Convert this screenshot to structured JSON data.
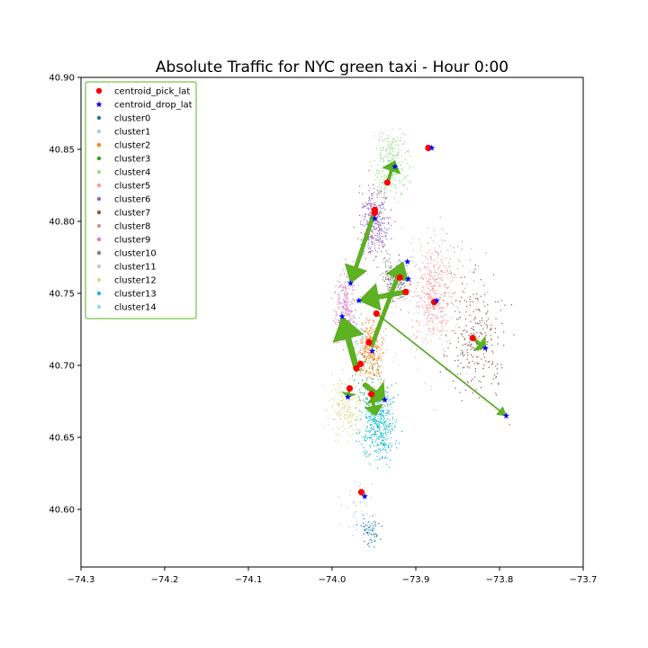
{
  "chart_data": {
    "type": "scatter",
    "title": "Absolute Traffic for NYC green taxi - Hour 0:00",
    "xlabel": "",
    "ylabel": "",
    "xlim": [
      -74.3,
      -73.7
    ],
    "ylim": [
      40.56,
      40.9
    ],
    "x_ticks": [
      -74.3,
      -74.2,
      -74.1,
      -74.0,
      -73.9,
      -73.8,
      -73.7
    ],
    "x_tick_labels": [
      "−74.3",
      "−74.2",
      "−74.1",
      "−74.0",
      "−73.9",
      "−73.8",
      "−73.7"
    ],
    "y_ticks": [
      40.6,
      40.65,
      40.7,
      40.75,
      40.8,
      40.85,
      40.9
    ],
    "y_tick_labels": [
      "40.60",
      "40.65",
      "40.70",
      "40.75",
      "40.80",
      "40.85",
      "40.90"
    ],
    "grid": false,
    "legend_position": "top-left",
    "legend": [
      {
        "label": "centroid_pick_lat",
        "marker": "circle",
        "color": "#ff0000"
      },
      {
        "label": "centroid_drop_lat",
        "marker": "star",
        "color": "#0000ff"
      },
      {
        "label": "cluster0",
        "marker": "dot",
        "color": "#1f77b4"
      },
      {
        "label": "cluster1",
        "marker": "dot",
        "color": "#aec7e8"
      },
      {
        "label": "cluster2",
        "marker": "dot",
        "color": "#ff7f0e"
      },
      {
        "label": "cluster3",
        "marker": "dot",
        "color": "#2ca02c"
      },
      {
        "label": "cluster4",
        "marker": "dot",
        "color": "#98df8a"
      },
      {
        "label": "cluster5",
        "marker": "dot",
        "color": "#ff9896"
      },
      {
        "label": "cluster6",
        "marker": "dot",
        "color": "#9467bd"
      },
      {
        "label": "cluster7",
        "marker": "dot",
        "color": "#8c564b"
      },
      {
        "label": "cluster8",
        "marker": "dot",
        "color": "#c49c94"
      },
      {
        "label": "cluster9",
        "marker": "dot",
        "color": "#e377c2"
      },
      {
        "label": "cluster10",
        "marker": "dot",
        "color": "#7f7f7f"
      },
      {
        "label": "cluster11",
        "marker": "dot",
        "color": "#c7c7c7"
      },
      {
        "label": "cluster12",
        "marker": "dot",
        "color": "#dbdb8d"
      },
      {
        "label": "cluster13",
        "marker": "dot",
        "color": "#17becf"
      },
      {
        "label": "cluster14",
        "marker": "dot",
        "color": "#9edae5"
      }
    ],
    "clusters": [
      {
        "name": "cluster0",
        "color": "#1f77b4",
        "center": [
          -73.955,
          40.585
        ],
        "spread": [
          0.012,
          0.01
        ],
        "n": 60
      },
      {
        "name": "cluster1",
        "color": "#aec7e8",
        "center": [
          -73.97,
          40.6
        ],
        "spread": [
          0.02,
          0.02
        ],
        "n": 40
      },
      {
        "name": "cluster2",
        "color": "#ff7f0e",
        "center": [
          -73.955,
          40.71
        ],
        "spread": [
          0.015,
          0.02
        ],
        "n": 260
      },
      {
        "name": "cluster3",
        "color": "#2ca02c",
        "center": [
          -73.96,
          40.69
        ],
        "spread": [
          0.02,
          0.02
        ],
        "n": 60
      },
      {
        "name": "cluster4",
        "color": "#98df8a",
        "center": [
          -73.93,
          40.84
        ],
        "spread": [
          0.02,
          0.025
        ],
        "n": 260
      },
      {
        "name": "cluster5",
        "color": "#ff9896",
        "center": [
          -73.88,
          40.75
        ],
        "spread": [
          0.022,
          0.03
        ],
        "n": 320
      },
      {
        "name": "cluster6",
        "color": "#9467bd",
        "center": [
          -73.95,
          40.8
        ],
        "spread": [
          0.018,
          0.025
        ],
        "n": 340
      },
      {
        "name": "cluster7",
        "color": "#8c564b",
        "center": [
          -73.83,
          40.72
        ],
        "spread": [
          0.035,
          0.04
        ],
        "n": 260
      },
      {
        "name": "cluster8",
        "color": "#c49c94",
        "center": [
          -73.86,
          40.77
        ],
        "spread": [
          0.03,
          0.03
        ],
        "n": 60
      },
      {
        "name": "cluster9",
        "color": "#e377c2",
        "center": [
          -73.985,
          40.74
        ],
        "spread": [
          0.012,
          0.025
        ],
        "n": 220
      },
      {
        "name": "cluster10",
        "color": "#7f7f7f",
        "center": [
          -73.925,
          40.76
        ],
        "spread": [
          0.015,
          0.015
        ],
        "n": 200
      },
      {
        "name": "cluster11",
        "color": "#c7c7c7",
        "center": [
          -73.9,
          40.74
        ],
        "spread": [
          0.06,
          0.06
        ],
        "n": 120
      },
      {
        "name": "cluster12",
        "color": "#dbdb8d",
        "center": [
          -73.985,
          40.67
        ],
        "spread": [
          0.02,
          0.02
        ],
        "n": 200
      },
      {
        "name": "cluster13",
        "color": "#17becf",
        "center": [
          -73.945,
          40.66
        ],
        "spread": [
          0.02,
          0.025
        ],
        "n": 420
      },
      {
        "name": "cluster14",
        "color": "#9edae5",
        "center": [
          -73.97,
          40.72
        ],
        "spread": [
          0.015,
          0.015
        ],
        "n": 80
      }
    ],
    "pickup_centroids": [
      [
        -73.885,
        40.851
      ],
      [
        -73.934,
        40.827
      ],
      [
        -73.949,
        40.808
      ],
      [
        -73.949,
        40.806
      ],
      [
        -73.919,
        40.761
      ],
      [
        -73.912,
        40.751
      ],
      [
        -73.878,
        40.744
      ],
      [
        -73.947,
        40.736
      ],
      [
        -73.832,
        40.719
      ],
      [
        -73.956,
        40.716
      ],
      [
        -73.966,
        40.701
      ],
      [
        -73.971,
        40.698
      ],
      [
        -73.979,
        40.684
      ],
      [
        -73.953,
        40.68
      ],
      [
        -73.965,
        40.612
      ]
    ],
    "dropoff_centroids": [
      [
        -73.881,
        40.851
      ],
      [
        -73.925,
        40.838
      ],
      [
        -73.949,
        40.802
      ],
      [
        -73.978,
        40.757
      ],
      [
        -73.91,
        40.772
      ],
      [
        -73.909,
        40.76
      ],
      [
        -73.875,
        40.745
      ],
      [
        -73.968,
        40.745
      ],
      [
        -73.817,
        40.712
      ],
      [
        -73.952,
        40.71
      ],
      [
        -73.988,
        40.734
      ],
      [
        -73.981,
        40.678
      ],
      [
        -73.937,
        40.676
      ],
      [
        -73.792,
        40.665
      ],
      [
        -73.961,
        40.609
      ]
    ],
    "flows": [
      {
        "from": [
          -73.949,
          40.807
        ],
        "to": [
          -73.978,
          40.757
        ],
        "weight": 4
      },
      {
        "from": [
          -73.934,
          40.827
        ],
        "to": [
          -73.925,
          40.842
        ],
        "weight": 3
      },
      {
        "from": [
          -73.912,
          40.751
        ],
        "to": [
          -73.968,
          40.745
        ],
        "weight": 5
      },
      {
        "from": [
          -73.953,
          40.713
        ],
        "to": [
          -73.915,
          40.772
        ],
        "weight": 4
      },
      {
        "from": [
          -73.971,
          40.698
        ],
        "to": [
          -73.988,
          40.734
        ],
        "weight": 6
      },
      {
        "from": [
          -73.962,
          40.687
        ],
        "to": [
          -73.937,
          40.676
        ],
        "weight": 5
      },
      {
        "from": [
          -73.953,
          40.68
        ],
        "to": [
          -73.948,
          40.665
        ],
        "weight": 3
      },
      {
        "from": [
          -73.832,
          40.719
        ],
        "to": [
          -73.817,
          40.712
        ],
        "weight": 3
      },
      {
        "from": [
          -73.947,
          40.736
        ],
        "to": [
          -73.792,
          40.665
        ],
        "weight": 1
      },
      {
        "from": [
          -73.979,
          40.684
        ],
        "to": [
          -73.981,
          40.678
        ],
        "weight": 2
      }
    ]
  }
}
